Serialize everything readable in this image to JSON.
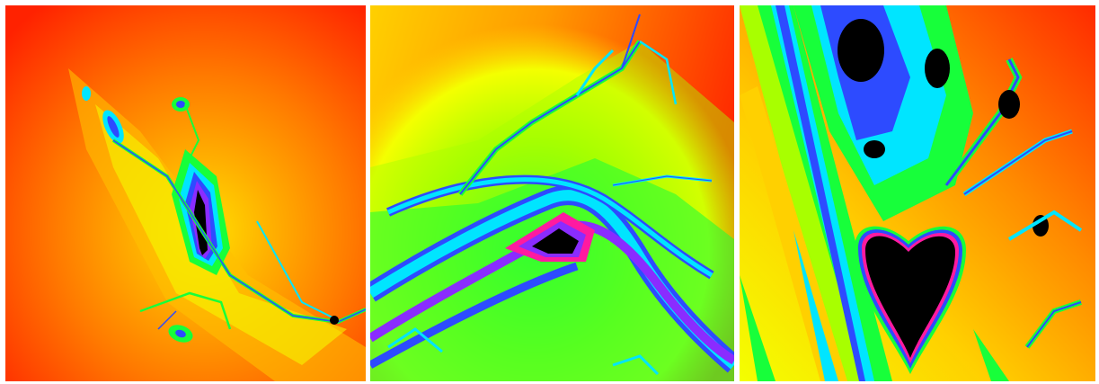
{
  "image": {
    "description_free": true,
    "panel_count": 3,
    "palette": {
      "outer": "#ff1a00",
      "orange": "#ff7a00",
      "amber": "#ffb000",
      "yellow": "#f4ff00",
      "lime": "#a8ff00",
      "green": "#17ff3a",
      "cyan": "#00e5ff",
      "blue": "#2d4bff",
      "violet": "#8a2cff",
      "magenta": "#ff1aa0",
      "core": "#000000"
    },
    "panels": [
      {
        "id": "panel-1",
        "pattern": "diagonal-island-with-filament"
      },
      {
        "id": "panel-2",
        "pattern": "swirl-spiral"
      },
      {
        "id": "panel-3",
        "pattern": "heart-cavity-with-dendrites"
      }
    ]
  }
}
